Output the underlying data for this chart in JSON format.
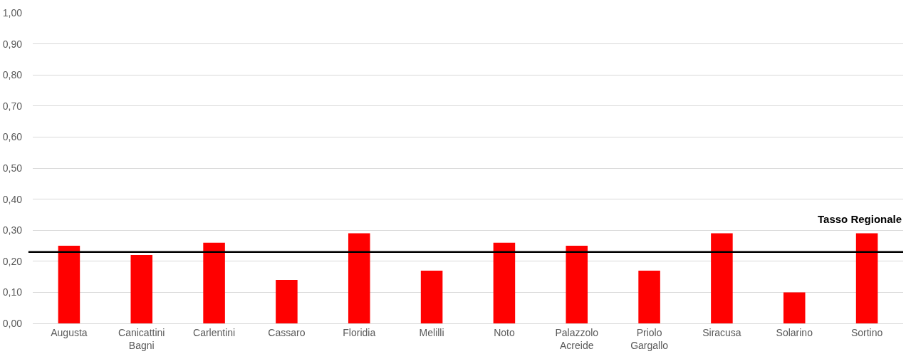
{
  "chart_data": {
    "type": "bar",
    "categories": [
      "Augusta",
      "Canicattini Bagni",
      "Carlentini",
      "Cassaro",
      "Floridia",
      "Melilli",
      "Noto",
      "Palazzolo Acreide",
      "Priolo Gargallo",
      "Siracusa",
      "Solarino",
      "Sortino"
    ],
    "series": [
      {
        "color": "#ff0000",
        "values": [
          0.25,
          0.22,
          0.26,
          0.14,
          0.29,
          0.17,
          0.26,
          0.25,
          0.17,
          0.29,
          0.1,
          0.29
        ]
      }
    ],
    "ylim": [
      0,
      1
    ],
    "yticks": [
      {
        "value": 0,
        "label": "0,00"
      },
      {
        "value": 0.1,
        "label": "0,10"
      },
      {
        "value": 0.2,
        "label": "0,20"
      },
      {
        "value": 0.3,
        "label": "0,30"
      },
      {
        "value": 0.4,
        "label": "0,40"
      },
      {
        "value": 0.5,
        "label": "0,50"
      },
      {
        "value": 0.6,
        "label": "0,60"
      },
      {
        "value": 0.7,
        "label": "0,70"
      },
      {
        "value": 0.8,
        "label": "0,80"
      },
      {
        "value": 0.9,
        "label": "0,90"
      },
      {
        "value": 1,
        "label": "1,00"
      }
    ],
    "ref_lines": [
      {
        "axis": "y",
        "value": 0.23,
        "label": "Tasso Regionale",
        "color": "#000000"
      }
    ],
    "grid": "y"
  }
}
